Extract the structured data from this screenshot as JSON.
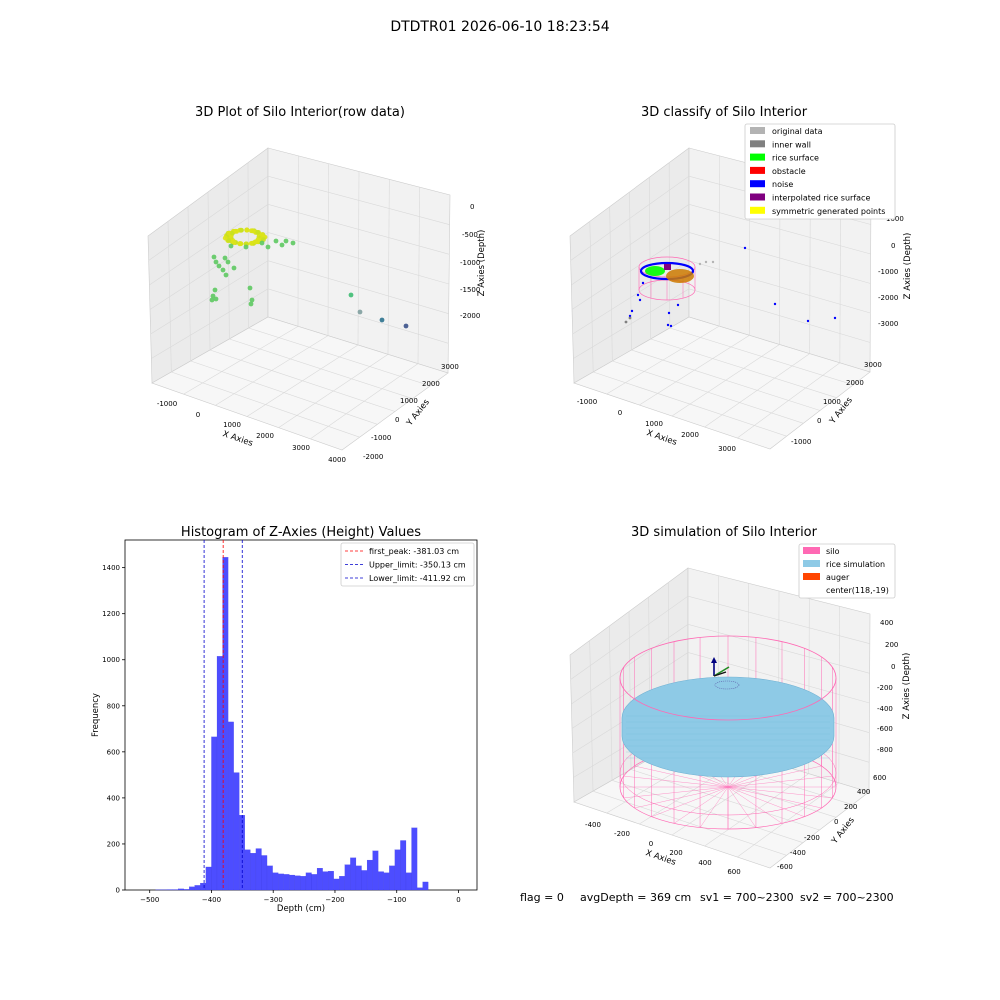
{
  "figure_title": "DTDTR01 2026-06-10 18:23:54",
  "footer": {
    "flag": "flag = 0",
    "avg_depth": "avgDepth = 369 cm",
    "sv1": "sv1 = 700~2300",
    "sv2": "sv2 = 700~2300"
  },
  "colors": {
    "original": "#b3b3b3",
    "inner_wall": "#808080",
    "rice_surface": "#00ff00",
    "obstacle": "#ff0000",
    "noise": "#0000ff",
    "interpolated": "#800080",
    "symmetric": "#ffff00",
    "hist_bar": "#4d4dff",
    "peak_line": "#ff0000",
    "limit_line": "#0000cc",
    "silo": "#ff69b4",
    "rice_sim": "#8ecae6",
    "auger": "#ff4500"
  },
  "chart_data": [
    {
      "type": "scatter",
      "title": "3D Plot of Silo Interior(row data)",
      "xlabel": "X Axies",
      "ylabel": "Y Axies",
      "zlabel": "Z Axies (Depth)",
      "x_ticks": [
        "-1000",
        "0",
        "1000",
        "2000",
        "3000",
        "4000"
      ],
      "y_ticks": [
        "-2000",
        "-1000",
        "0",
        "1000",
        "2000",
        "3000"
      ],
      "z_ticks": [
        "0",
        "-500",
        "-1000",
        "-1500",
        "-2000"
      ],
      "colormap": "viridis (by depth)"
    },
    {
      "type": "scatter",
      "title": "3D classify of Silo Interior",
      "xlabel": "X Axies",
      "ylabel": "Y Axies",
      "zlabel": "Z Axies (Depth)",
      "x_ticks": [
        "-1000",
        "0",
        "1000",
        "2000",
        "3000"
      ],
      "y_ticks": [
        "-1000",
        "0",
        "1000",
        "2000",
        "3000"
      ],
      "z_ticks": [
        "1000",
        "0",
        "-1000",
        "-2000",
        "-3000"
      ],
      "legend": [
        "original data",
        "inner wall",
        "rice surface",
        "obstacle",
        "noise",
        "interpolated rice surface",
        "symmetric generated points"
      ],
      "legend_position": "top-right"
    },
    {
      "type": "bar",
      "title": "Histogram of Z-Axies (Height) Values",
      "xlabel": "Depth (cm)",
      "ylabel": "Frequency",
      "xlim": [
        -540,
        30
      ],
      "ylim": [
        0,
        1520
      ],
      "x_ticks": [
        -500,
        -400,
        -300,
        -200,
        -100,
        0
      ],
      "y_ticks": [
        0,
        200,
        400,
        600,
        800,
        1000,
        1200,
        1400
      ],
      "bin_width": 9,
      "bins_left": [
        -490,
        -481,
        -472,
        -463,
        -454,
        -445,
        -436,
        -427,
        -418,
        -409,
        -400,
        -391,
        -382,
        -373,
        -364,
        -355,
        -346,
        -337,
        -328,
        -319,
        -310,
        -301,
        -292,
        -283,
        -274,
        -265,
        -256,
        -247,
        -238,
        -229,
        -220,
        -211,
        -202,
        -193,
        -184,
        -175,
        -166,
        -157,
        -148,
        -139,
        -130,
        -121,
        -112,
        -103,
        -94,
        -85,
        -76,
        -67,
        -58,
        -49,
        -40,
        -31,
        -22,
        -13,
        -4
      ],
      "counts": [
        1,
        1,
        2,
        2,
        5,
        3,
        14,
        20,
        30,
        100,
        665,
        1015,
        1445,
        730,
        510,
        325,
        175,
        160,
        180,
        150,
        105,
        75,
        70,
        68,
        65,
        62,
        60,
        75,
        68,
        95,
        80,
        82,
        48,
        60,
        110,
        140,
        105,
        85,
        130,
        170,
        80,
        75,
        105,
        175,
        215,
        75,
        270,
        10,
        35,
        0,
        0,
        0,
        0,
        0,
        0
      ],
      "vlines": [
        {
          "label": "first_peak: -381.03 cm",
          "x": -381.03,
          "color": "#ff0000"
        },
        {
          "label": "Upper_limit: -350.13 cm",
          "x": -350.13,
          "color": "#0000cc"
        },
        {
          "label": "Lower_limit: -411.92 cm",
          "x": -411.92,
          "color": "#0000cc"
        }
      ],
      "legend_position": "top-right"
    },
    {
      "type": "surface",
      "title": "3D simulation of Silo Interior",
      "xlabel": "X Axies",
      "ylabel": "Y Axies",
      "zlabel": "Z Axies (Depth)",
      "x_ticks": [
        "-400",
        "-200",
        "0",
        "200",
        "400",
        "600"
      ],
      "y_ticks": [
        "-600",
        "-400",
        "-200",
        "0",
        "200",
        "400",
        "600"
      ],
      "z_ticks": [
        "400",
        "200",
        "0",
        "-200",
        "-400",
        "-600",
        "-800"
      ],
      "legend": [
        "silo",
        "rice simulation",
        "auger",
        "center(118,-19)"
      ],
      "legend_position": "top-right"
    }
  ]
}
